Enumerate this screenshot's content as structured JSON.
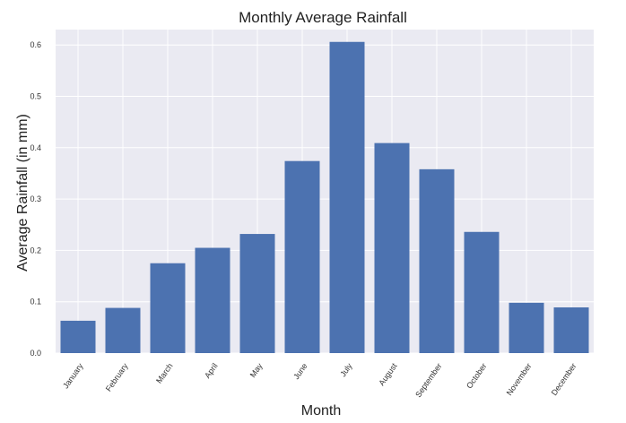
{
  "chart_data": {
    "type": "bar",
    "title": "Monthly Average Rainfall",
    "xlabel": "Month",
    "ylabel": "Average Rainfall (in mm)",
    "categories": [
      "January",
      "February",
      "March",
      "April",
      "May",
      "June",
      "July",
      "August",
      "September",
      "October",
      "November",
      "December"
    ],
    "values": [
      0.063,
      0.088,
      0.175,
      0.205,
      0.232,
      0.374,
      0.606,
      0.409,
      0.358,
      0.236,
      0.098,
      0.089
    ],
    "ylim": [
      0,
      0.63
    ],
    "yticks": [
      "0.0",
      "0.1",
      "0.2",
      "0.3",
      "0.4",
      "0.5",
      "0.6"
    ],
    "grid": true,
    "colors": {
      "bar": "#4c72b0",
      "plot_background": "#eaeaf2",
      "grid": "#ffffff"
    }
  }
}
